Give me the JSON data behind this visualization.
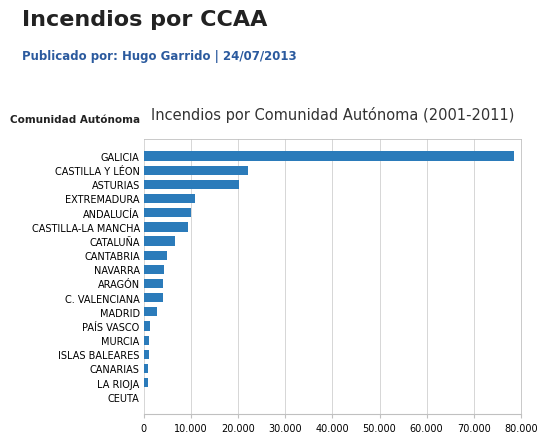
{
  "title_main": "Incendios por CCAA",
  "subtitle": "Publicado por: Hugo Garrido | 24/07/2013",
  "chart_title": "Incendios por Comunidad Autónoma (2001-2011)",
  "ylabel_label": "Comunidad Autónoma",
  "categories": [
    "GALICIA",
    "CASTILLA Y LÉON",
    "ASTURIAS",
    "EXTREMADURA",
    "ANDALUCÍA",
    "CASTILLA-LA MANCHA",
    "CATALUÑA",
    "CANTABRIA",
    "NAVARRA",
    "ARAGÓN",
    "C. VALENCIANA",
    "MADRID",
    "PAÍS VASCO",
    "MURCIA",
    "ISLAS BALEARES",
    "CANARIAS",
    "LA RIOJA",
    "CEUTA"
  ],
  "values": [
    78500,
    22000,
    20200,
    10800,
    10000,
    9400,
    6500,
    4800,
    4300,
    4000,
    4100,
    2800,
    1300,
    1100,
    1000,
    950,
    850,
    80
  ],
  "bar_color": "#2b7bba",
  "background_color": "#ffffff",
  "xlim": [
    0,
    80000
  ],
  "xticks": [
    0,
    10000,
    20000,
    30000,
    40000,
    50000,
    60000,
    70000,
    80000
  ],
  "xtick_labels": [
    "0",
    "10.000",
    "20.000",
    "30.000",
    "40.000",
    "50.000",
    "60.000",
    "70.000",
    "80.000"
  ],
  "title_fontsize": 16,
  "subtitle_fontsize": 8.5,
  "chart_title_fontsize": 10.5,
  "ytick_fontsize": 7,
  "xtick_fontsize": 7,
  "ylabel_fontsize": 7.5,
  "bar_height": 0.65,
  "grid_color": "#d0d0d0",
  "border_color": "#c0c0c0"
}
